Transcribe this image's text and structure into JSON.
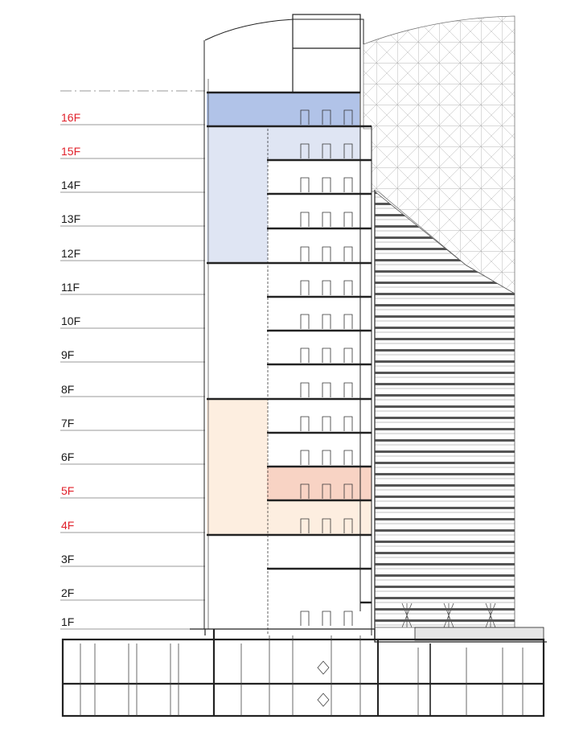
{
  "floors": [
    {
      "label": "16F",
      "highlight": true
    },
    {
      "label": "15F",
      "highlight": true
    },
    {
      "label": "14F",
      "highlight": false
    },
    {
      "label": "13F",
      "highlight": false
    },
    {
      "label": "12F",
      "highlight": false
    },
    {
      "label": "11F",
      "highlight": false
    },
    {
      "label": "10F",
      "highlight": false
    },
    {
      "label": "9F",
      "highlight": false
    },
    {
      "label": "8F",
      "highlight": false
    },
    {
      "label": "7F",
      "highlight": false
    },
    {
      "label": "6F",
      "highlight": false
    },
    {
      "label": "5F",
      "highlight": true
    },
    {
      "label": "4F",
      "highlight": true
    },
    {
      "label": "3F",
      "highlight": false
    },
    {
      "label": "2F",
      "highlight": false
    },
    {
      "label": "1F",
      "highlight": false
    }
  ],
  "colors": {
    "highlight_label": "#e0202a",
    "normal_label": "#1a1a1a",
    "zone_blue_dark": "#a8bde6",
    "zone_blue_light": "#dfe5f3",
    "zone_orange_light": "#fdeee0",
    "zone_salmon": "#f8d3c4",
    "line": "#222222",
    "thin_line": "#888888"
  }
}
